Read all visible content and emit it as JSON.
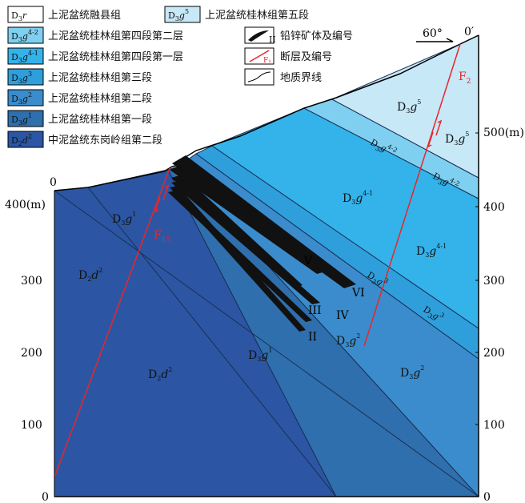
{
  "legend": {
    "units": [
      {
        "code_main": "D",
        "code_sub": "3",
        "code_letter": "r",
        "code_sup": "",
        "name": "上泥盆统融县组",
        "color": "#ffffff"
      },
      {
        "code_main": "D",
        "code_sub": "3",
        "code_letter": "g",
        "code_sup": "5",
        "name": "上泥盆统桂林组第五段",
        "color": "#c6e8f7"
      },
      {
        "code_main": "D",
        "code_sub": "3",
        "code_letter": "g",
        "code_sup": "4-2",
        "name": "上泥盆统桂林组第四段第二层",
        "color": "#7fd0f0"
      },
      {
        "code_main": "D",
        "code_sub": "3",
        "code_letter": "g",
        "code_sup": "4-1",
        "name": "上泥盆统桂林组第四段第一层",
        "color": "#33b3ea"
      },
      {
        "code_main": "D",
        "code_sub": "3",
        "code_letter": "g",
        "code_sup": "3",
        "name": "上泥盆统桂林组第三段",
        "color": "#2f9fdc"
      },
      {
        "code_main": "D",
        "code_sub": "3",
        "code_letter": "g",
        "code_sup": "2",
        "name": "上泥盆统桂林组第二段",
        "color": "#3b8ccc"
      },
      {
        "code_main": "D",
        "code_sub": "3",
        "code_letter": "g",
        "code_sup": "1",
        "name": "上泥盆统桂林组第一段",
        "color": "#2f6fad"
      },
      {
        "code_main": "D",
        "code_sub": "2",
        "code_letter": "d",
        "code_sup": "2",
        "name": "中泥盆统东岗岭组第二段",
        "color": "#2c56a3"
      }
    ],
    "symbols": [
      {
        "icon": "ore-body-icon",
        "label": "铅锌矿体及编号",
        "tag": "II"
      },
      {
        "icon": "fault-icon",
        "label": "断层及编号",
        "tag": "F1"
      },
      {
        "icon": "boundary-icon",
        "label": "地质界线"
      }
    ]
  },
  "axes": {
    "left_unit": "400(m)",
    "right_unit": "500(m)",
    "left_ticks": [
      "300",
      "200",
      "100",
      "0"
    ],
    "right_ticks": [
      "400",
      "300",
      "200",
      "100",
      "0"
    ],
    "left_top": "0",
    "right_top": "0′",
    "angle": "60°"
  },
  "faults": [
    {
      "letter": "F",
      "sub": "15"
    },
    {
      "letter": "F",
      "sub": "2"
    }
  ],
  "ore_bodies": [
    "V",
    "VI",
    "III",
    "IV",
    "II"
  ],
  "units_on_section": [
    {
      "main": "D",
      "sub": "3",
      "letter": "g",
      "sup": "5"
    },
    {
      "main": "D",
      "sub": "3",
      "letter": "g",
      "sup": "5"
    },
    {
      "main": "D",
      "sub": "3",
      "letter": "g",
      "sup": "4-2"
    },
    {
      "main": "D",
      "sub": "3",
      "letter": "g",
      "sup": "4-2"
    },
    {
      "main": "D",
      "sub": "3",
      "letter": "g",
      "sup": "4-1"
    },
    {
      "main": "D",
      "sub": "3",
      "letter": "g",
      "sup": "4-1"
    },
    {
      "main": "D",
      "sub": "3",
      "letter": "g",
      "sup": "3"
    },
    {
      "main": "D",
      "sub": "3",
      "letter": "g",
      "sup": "3"
    },
    {
      "main": "D",
      "sub": "3",
      "letter": "g",
      "sup": "2"
    },
    {
      "main": "D",
      "sub": "3",
      "letter": "g",
      "sup": "2"
    },
    {
      "main": "D",
      "sub": "3",
      "letter": "g",
      "sup": "1"
    },
    {
      "main": "D",
      "sub": "3",
      "letter": "g",
      "sup": "1"
    },
    {
      "main": "D",
      "sub": "2",
      "letter": "d",
      "sup": "2"
    },
    {
      "main": "D",
      "sub": "2",
      "letter": "d",
      "sup": "2"
    }
  ]
}
